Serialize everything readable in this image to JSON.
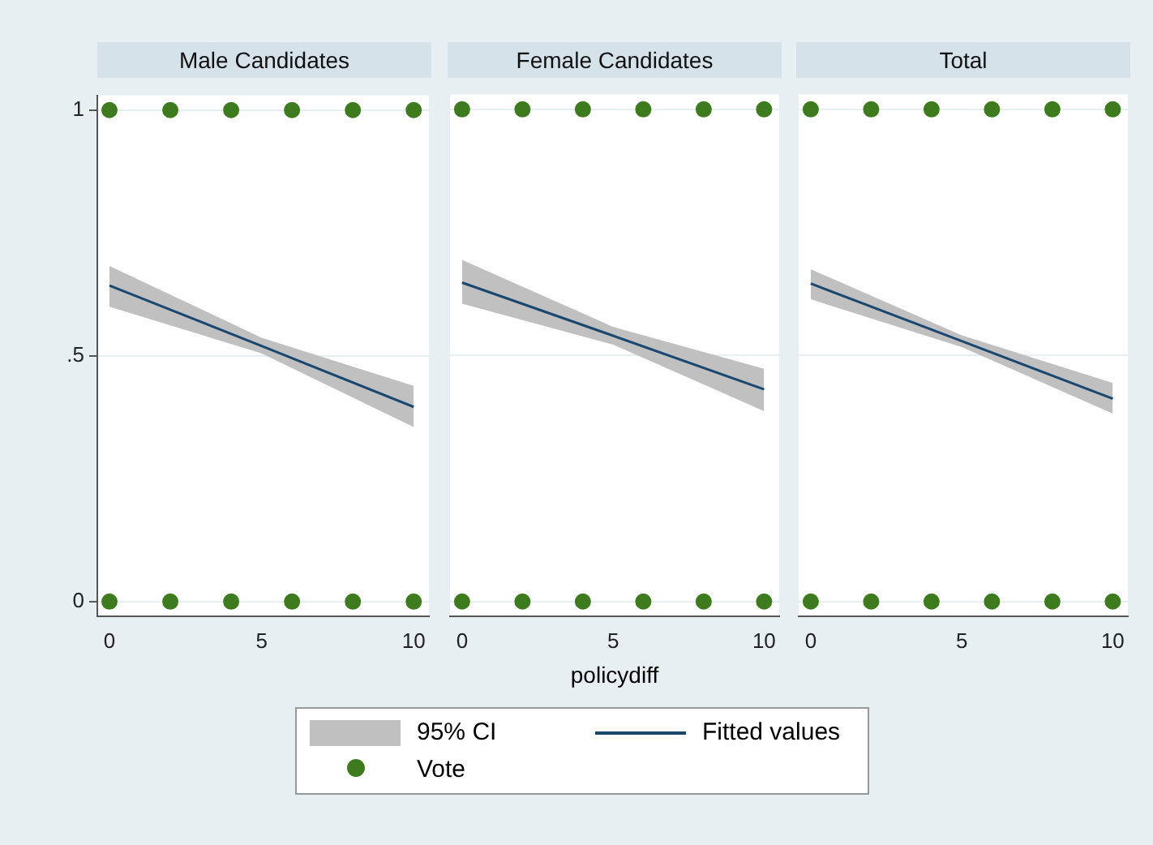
{
  "chart_data": [
    {
      "type": "line",
      "title": "Male Candidates",
      "annotations": [
        "95% CI"
      ],
      "xlim": [
        -0.4,
        10.5
      ],
      "ylim": [
        -0.03,
        1.03
      ],
      "xticks": [
        0,
        5,
        10
      ],
      "yticks": [
        0,
        {
          "value": 0.5,
          "label": ".5"
        },
        1
      ],
      "grid": "y",
      "legend": "bottom",
      "series": [
        {
          "name": "Fitted values",
          "color": "#1a476f",
          "x": [
            0,
            5,
            10
          ],
          "values": [
            0.643,
            0.52,
            0.396
          ],
          "lower": [
            0.6,
            0.505,
            0.355
          ],
          "upper": [
            0.683,
            0.537,
            0.439
          ]
        },
        {
          "name": "Vote",
          "type": "scatter",
          "color": "#3e7b1e",
          "marker": "circle",
          "x": [
            0,
            2,
            4,
            6,
            8,
            10,
            0,
            2,
            4,
            6,
            8,
            10
          ],
          "values": [
            1,
            1,
            1,
            1,
            1,
            1,
            0,
            0,
            0,
            0,
            0,
            0
          ]
        }
      ]
    },
    {
      "type": "line",
      "title": "Female Candidates",
      "xlabel": "policydiff",
      "xlim": [
        -0.4,
        10.5
      ],
      "ylim": [
        -0.03,
        1.03
      ],
      "xticks": [
        0,
        5,
        10
      ],
      "yticks": [
        0,
        0.5,
        1
      ],
      "grid": "y",
      "tick_labels": "x",
      "series": [
        {
          "color": "#1a476f",
          "x": [
            0,
            5,
            10
          ],
          "values": [
            0.648,
            0.54,
            0.431
          ],
          "lower": [
            0.605,
            0.522,
            0.387
          ],
          "upper": [
            0.694,
            0.558,
            0.473
          ]
        },
        {
          "type": "scatter",
          "color": "#3e7b1e",
          "marker": "circle",
          "x": [
            0,
            2,
            4,
            6,
            8,
            10,
            0,
            2,
            4,
            6,
            8,
            10
          ],
          "values": [
            1,
            1,
            1,
            1,
            1,
            1,
            0,
            0,
            0,
            0,
            0,
            0
          ]
        }
      ]
    },
    {
      "type": "line",
      "title": "Total",
      "xlim": [
        -0.4,
        10.5
      ],
      "ylim": [
        -0.03,
        1.03
      ],
      "xticks": [
        0,
        5,
        10
      ],
      "yticks": [
        0,
        0.5,
        1
      ],
      "grid": "y",
      "tick_labels": "x",
      "series": [
        {
          "color": "#1a476f",
          "x": [
            0,
            5,
            10
          ],
          "values": [
            0.646,
            0.529,
            0.412
          ],
          "lower": [
            0.614,
            0.517,
            0.382
          ],
          "upper": [
            0.675,
            0.541,
            0.444
          ]
        },
        {
          "type": "scatter",
          "color": "#3e7b1e",
          "marker": "circle",
          "x": [
            0,
            2,
            4,
            6,
            8,
            10,
            0,
            2,
            4,
            6,
            8,
            10
          ],
          "values": [
            1,
            1,
            1,
            1,
            1,
            1,
            0,
            0,
            0,
            0,
            0,
            0
          ]
        }
      ]
    }
  ]
}
